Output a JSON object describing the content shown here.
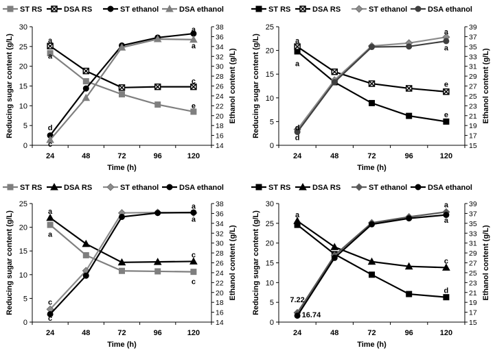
{
  "chart_data": [
    {
      "type": "line",
      "x": [
        24,
        48,
        72,
        96,
        120
      ],
      "xlabel": "Time (h)",
      "ylabel": "Reducing sugar content (g/L)",
      "ylabel2": "Ethanol content (g/L)",
      "ylim": [
        0,
        30
      ],
      "yticks": [
        0,
        5,
        10,
        15,
        20,
        25,
        30
      ],
      "ylim2": [
        14,
        38
      ],
      "yticks2": [
        14,
        16,
        18,
        20,
        22,
        24,
        26,
        28,
        30,
        32,
        34,
        36,
        38
      ],
      "series": [
        {
          "name": "ST RS",
          "axis": "left",
          "color": "#7f7f7f",
          "marker": "square",
          "values": [
            23.3,
            16.2,
            12.9,
            10.3,
            8.5
          ]
        },
        {
          "name": "DSA RS",
          "axis": "left",
          "color": "#000000",
          "marker": "squarex",
          "values": [
            25.1,
            18.8,
            14.6,
            14.8,
            14.8
          ]
        },
        {
          "name": "ST ethanol",
          "axis": "right",
          "color": "#000000",
          "marker": "circle",
          "values": [
            16.0,
            25.5,
            34.2,
            35.8,
            36.6
          ]
        },
        {
          "name": "DSA ethanol",
          "axis": "right",
          "color": "#7f7f7f",
          "marker": "triangle",
          "values": [
            15.1,
            23.6,
            33.8,
            35.5,
            35.4
          ]
        }
      ],
      "annotations": [
        {
          "text": "a",
          "x": 24,
          "y": 26.6,
          "axis": "left"
        },
        {
          "text": "a",
          "x": 24,
          "y": 22.6,
          "axis": "left"
        },
        {
          "text": "c",
          "x": 120,
          "y": 16.3,
          "axis": "left"
        },
        {
          "text": "e",
          "x": 120,
          "y": 10.1,
          "axis": "left"
        },
        {
          "text": "d",
          "x": 24,
          "y": 17.6,
          "axis": "right"
        },
        {
          "text": "c",
          "x": 24,
          "y": 14.3,
          "axis": "right"
        },
        {
          "text": "a",
          "x": 120,
          "y": 37.5,
          "axis": "right"
        },
        {
          "text": "a",
          "x": 120,
          "y": 34.2,
          "axis": "right"
        }
      ]
    },
    {
      "type": "line",
      "x": [
        24,
        48,
        72,
        96,
        120
      ],
      "xlabel": "Time (h)",
      "ylabel": "Reducing sugar content (g/L)",
      "ylabel2": "Ethanol content (g/L)",
      "ylim": [
        0,
        25
      ],
      "yticks": [
        0,
        5,
        10,
        15,
        20,
        25
      ],
      "ylim2": [
        15,
        39
      ],
      "yticks2": [
        15,
        17,
        19,
        21,
        23,
        25,
        27,
        29,
        31,
        33,
        35,
        37,
        39
      ],
      "series": [
        {
          "name": "ST RS",
          "axis": "left",
          "color": "#000000",
          "marker": "square",
          "values": [
            19.8,
            13.3,
            8.9,
            6.2,
            5.0
          ]
        },
        {
          "name": "DSA RS",
          "axis": "left",
          "color": "#000000",
          "marker": "squarex",
          "values": [
            20.8,
            15.5,
            13.0,
            12.0,
            11.3
          ]
        },
        {
          "name": "ST ethanol",
          "axis": "right",
          "color": "#8c8c8c",
          "marker": "diamond",
          "values": [
            18.2,
            28.2,
            35.1,
            35.7,
            36.9
          ]
        },
        {
          "name": "DSA ethanol",
          "axis": "right",
          "color": "#3f3f3f",
          "marker": "circle",
          "values": [
            17.7,
            27.8,
            34.9,
            35.0,
            36.1
          ]
        }
      ],
      "annotations": [
        {
          "text": "a",
          "x": 24,
          "y": 22.1,
          "axis": "left"
        },
        {
          "text": "a",
          "x": 24,
          "y": 17.3,
          "axis": "left"
        },
        {
          "text": "e",
          "x": 120,
          "y": 12.9,
          "axis": "left"
        },
        {
          "text": "e",
          "x": 120,
          "y": 6.5,
          "axis": "left"
        },
        {
          "text": "d",
          "x": 24,
          "y": 18.6,
          "axis": "right"
        },
        {
          "text": "d",
          "x": 24,
          "y": 16.6,
          "axis": "right"
        },
        {
          "text": "a",
          "x": 120,
          "y": 38.0,
          "axis": "right"
        },
        {
          "text": "a",
          "x": 120,
          "y": 34.8,
          "axis": "right"
        }
      ]
    },
    {
      "type": "line",
      "x": [
        24,
        48,
        72,
        96,
        120
      ],
      "xlabel": "Time (h)",
      "ylabel": "Reducing sugar content (g/L)",
      "ylabel2": "Ethanol content (g/L)",
      "ylim": [
        0,
        25
      ],
      "yticks": [
        0,
        5,
        10,
        15,
        20,
        25
      ],
      "ylim2": [
        14,
        38
      ],
      "yticks2": [
        14,
        16,
        18,
        20,
        22,
        24,
        26,
        28,
        30,
        32,
        34,
        36,
        38
      ],
      "series": [
        {
          "name": "ST RS",
          "axis": "left",
          "color": "#7f7f7f",
          "marker": "square",
          "values": [
            20.5,
            14.1,
            10.8,
            10.7,
            10.6
          ]
        },
        {
          "name": "DSA RS",
          "axis": "left",
          "color": "#000000",
          "marker": "triangle",
          "values": [
            22.0,
            16.5,
            12.6,
            12.7,
            12.8
          ]
        },
        {
          "name": "ST ethanol",
          "axis": "right",
          "color": "#8c8c8c",
          "marker": "diamond",
          "values": [
            16.6,
            24.4,
            36.1,
            36.2,
            36.1
          ]
        },
        {
          "name": "DSA ethanol",
          "axis": "right",
          "color": "#000000",
          "marker": "circle",
          "values": [
            15.6,
            23.4,
            35.3,
            36.1,
            36.2
          ]
        }
      ],
      "annotations": [
        {
          "text": "a",
          "x": 24,
          "y": 23.4,
          "axis": "left"
        },
        {
          "text": "a",
          "x": 24,
          "y": 18.6,
          "axis": "left"
        },
        {
          "text": "c",
          "x": 120,
          "y": 14.2,
          "axis": "left"
        },
        {
          "text": "c",
          "x": 120,
          "y": 8.6,
          "axis": "left"
        },
        {
          "text": "c",
          "x": 24,
          "y": 18.1,
          "axis": "right"
        },
        {
          "text": "c",
          "x": 24,
          "y": 14.8,
          "axis": "right"
        },
        {
          "text": "a",
          "x": 120,
          "y": 37.5,
          "axis": "right"
        },
        {
          "text": "a",
          "x": 120,
          "y": 34.9,
          "axis": "right"
        }
      ]
    },
    {
      "type": "line",
      "x": [
        24,
        48,
        72,
        96,
        120
      ],
      "xlabel": "Time (h)",
      "ylabel": "Reducing sugar content (g/L)",
      "ylabel2": "Ethanol content (g/L)",
      "ylim": [
        0,
        30
      ],
      "yticks": [
        0,
        5,
        10,
        15,
        20,
        25,
        30
      ],
      "ylim2": [
        15,
        39
      ],
      "yticks2": [
        15,
        17,
        19,
        21,
        23,
        25,
        27,
        29,
        31,
        33,
        35,
        37,
        39
      ],
      "series": [
        {
          "name": "ST RS",
          "axis": "left",
          "color": "#000000",
          "marker": "square",
          "values": [
            24.6,
            17.2,
            12.0,
            7.1,
            6.3
          ]
        },
        {
          "name": "DSA RS",
          "axis": "left",
          "color": "#000000",
          "marker": "triangle",
          "values": [
            25.6,
            19.0,
            15.3,
            14.1,
            13.8
          ]
        },
        {
          "name": "ST ethanol",
          "axis": "right",
          "color": "#595959",
          "marker": "diamond",
          "values": [
            16.9,
            28.5,
            35.1,
            36.3,
            37.3
          ]
        },
        {
          "name": "DSA ethanol",
          "axis": "right",
          "color": "#000000",
          "marker": "circle",
          "values": [
            16.3,
            28.0,
            34.8,
            36.0,
            36.7
          ]
        }
      ],
      "annotations": [
        {
          "text": "a",
          "x": 24,
          "y": 27.2,
          "axis": "left"
        },
        {
          "text": "a",
          "x": 24,
          "y": 25.6,
          "axis": "left"
        },
        {
          "text": "c",
          "x": 120,
          "y": 15.5,
          "axis": "left"
        },
        {
          "text": "d",
          "x": 120,
          "y": 8.1,
          "axis": "left"
        },
        {
          "text": "7.22",
          "x": 24,
          "y": 19.6,
          "axis": "right"
        },
        {
          "text": "16.74",
          "x": 33,
          "y": 16.5,
          "axis": "right"
        },
        {
          "text": "a",
          "x": 120,
          "y": 38.8,
          "axis": "right"
        },
        {
          "text": "a",
          "x": 120,
          "y": 35.7,
          "axis": "right"
        }
      ]
    }
  ]
}
